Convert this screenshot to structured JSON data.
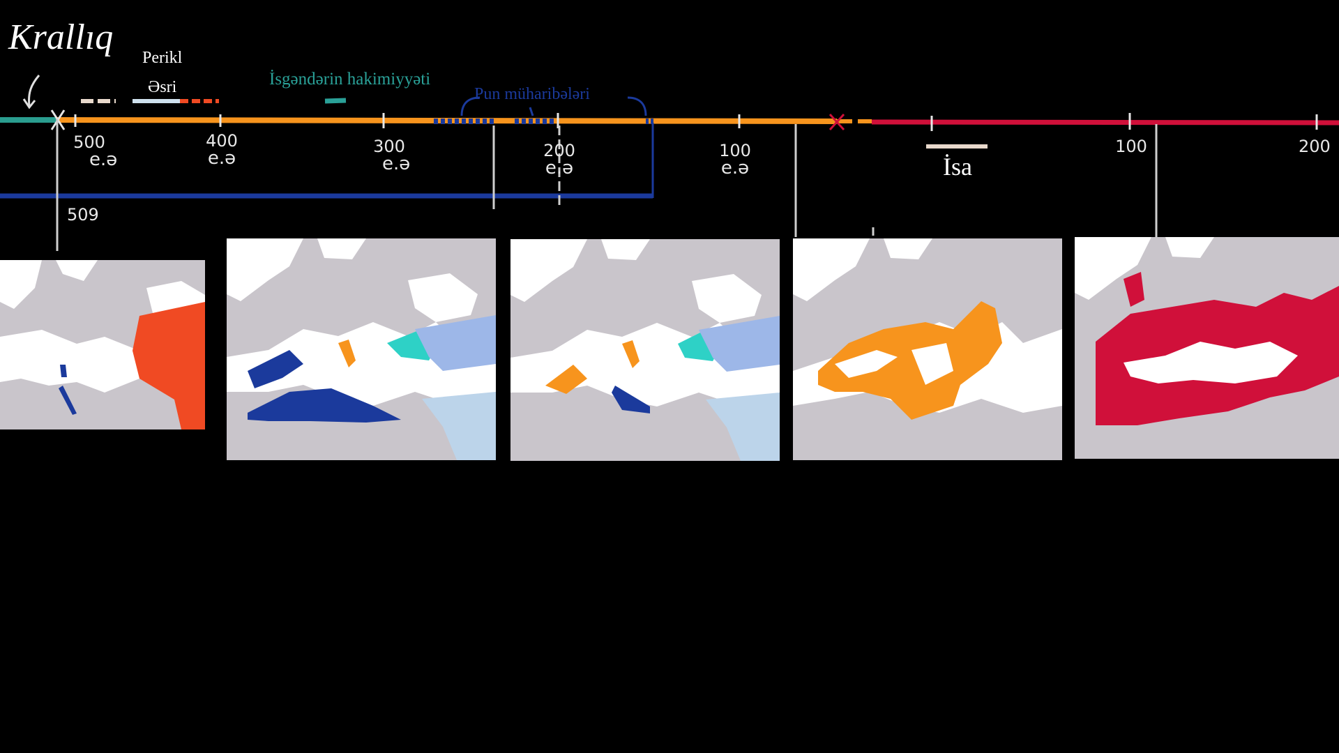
{
  "header": {
    "title": "Krallıq"
  },
  "labels": {
    "pericles_line1": "Perikl",
    "pericles_line2": "Əsri",
    "alexander": "İsgəndərin hakimiyyəti",
    "punic_wars": "Pun müharibələri",
    "jesus": "İsa",
    "year_509": "509"
  },
  "ticks": [
    {
      "value": "500",
      "era": "e.ə"
    },
    {
      "value": "400",
      "era": "e.ə"
    },
    {
      "value": "300",
      "era": "e.ə"
    },
    {
      "value": "200",
      "era": "e.ə"
    },
    {
      "value": "100",
      "era": "e.ə"
    },
    {
      "value": "100",
      "era": ""
    },
    {
      "value": "200",
      "era": ""
    }
  ],
  "colors": {
    "background": "#000000",
    "kingdom_teal": "#2a9d8f",
    "republic_orange": "#f7941d",
    "empire_crimson": "#d0103a",
    "carthage_blue": "#1b3a9c",
    "pericles_red": "#f04a23",
    "alexander_teal": "#2aa198",
    "map_land": "#ffffff",
    "map_sea": "#c9c5cb"
  },
  "maps": [
    {
      "label": "map-1"
    },
    {
      "label": "map-2"
    },
    {
      "label": "map-3"
    },
    {
      "label": "map-4"
    },
    {
      "label": "map-5"
    }
  ]
}
